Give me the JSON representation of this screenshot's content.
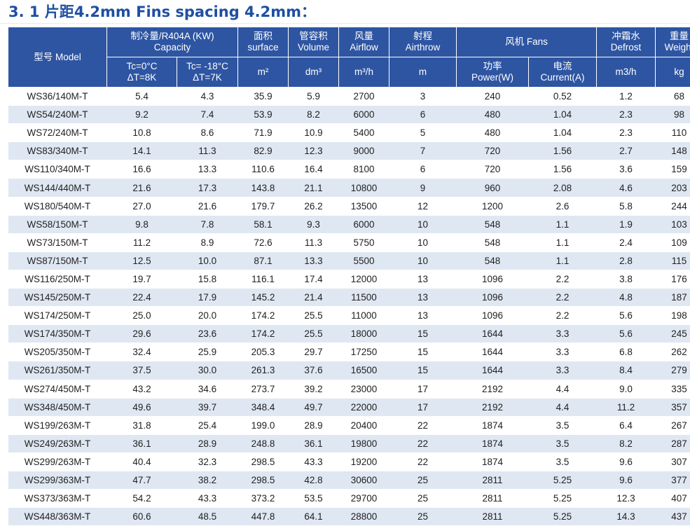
{
  "page": {
    "title": "3. 1 片距4.2mm  Fins spacing 4.2mm："
  },
  "table": {
    "header": {
      "model": "型号 Model",
      "capacity": [
        "制冷量/R404A (KW)",
        "Capacity"
      ],
      "surface": [
        "面积",
        "surface"
      ],
      "volume": [
        "管容积",
        "Volume"
      ],
      "airflow": [
        "风量",
        "Airflow"
      ],
      "airthrow": [
        "射程",
        "Airthrow"
      ],
      "fans": "风机 Fans",
      "defrost": [
        "冲霜水",
        "Defrost"
      ],
      "weight": [
        "重量",
        "Weight"
      ],
      "tc0": [
        "Tc=0°C",
        "ΔT=8K"
      ],
      "tc18": [
        "Tc= -18°C",
        "ΔT=7K"
      ],
      "unit_surface": "m²",
      "unit_volume": "dm³",
      "unit_airflow": "m³/h",
      "unit_airthrow": "m",
      "power": [
        "功率",
        "Power(W)"
      ],
      "current": [
        "电流",
        "Current(A)"
      ],
      "unit_defrost": "m3/h",
      "unit_weight": "kg"
    },
    "rows": [
      [
        "WS36/140M-T",
        "5.4",
        "4.3",
        "35.9",
        "5.9",
        "2700",
        "3",
        "240",
        "0.52",
        "1.2",
        "68"
      ],
      [
        "WS54/240M-T",
        "9.2",
        "7.4",
        "53.9",
        "8.2",
        "6000",
        "6",
        "480",
        "1.04",
        "2.3",
        "98"
      ],
      [
        "WS72/240M-T",
        "10.8",
        "8.6",
        "71.9",
        "10.9",
        "5400",
        "5",
        "480",
        "1.04",
        "2.3",
        "110"
      ],
      [
        "WS83/340M-T",
        "14.1",
        "11.3",
        "82.9",
        "12.3",
        "9000",
        "7",
        "720",
        "1.56",
        "2.7",
        "148"
      ],
      [
        "WS110/340M-T",
        "16.6",
        "13.3",
        "110.6",
        "16.4",
        "8100",
        "6",
        "720",
        "1.56",
        "3.6",
        "159"
      ],
      [
        "WS144/440M-T",
        "21.6",
        "17.3",
        "143.8",
        "21.1",
        "10800",
        "9",
        "960",
        "2.08",
        "4.6",
        "203"
      ],
      [
        "WS180/540M-T",
        "27.0",
        "21.6",
        "179.7",
        "26.2",
        "13500",
        "12",
        "1200",
        "2.6",
        "5.8",
        "244"
      ],
      [
        "WS58/150M-T",
        "9.8",
        "7.8",
        "58.1",
        "9.3",
        "6000",
        "10",
        "548",
        "1.1",
        "1.9",
        "103"
      ],
      [
        "WS73/150M-T",
        "11.2",
        "8.9",
        "72.6",
        "11.3",
        "5750",
        "10",
        "548",
        "1.1",
        "2.4",
        "109"
      ],
      [
        "WS87/150M-T",
        "12.5",
        "10.0",
        "87.1",
        "13.3",
        "5500",
        "10",
        "548",
        "1.1",
        "2.8",
        "115"
      ],
      [
        "WS116/250M-T",
        "19.7",
        "15.8",
        "116.1",
        "17.4",
        "12000",
        "13",
        "1096",
        "2.2",
        "3.8",
        "176"
      ],
      [
        "WS145/250M-T",
        "22.4",
        "17.9",
        "145.2",
        "21.4",
        "11500",
        "13",
        "1096",
        "2.2",
        "4.8",
        "187"
      ],
      [
        "WS174/250M-T",
        "25.0",
        "20.0",
        "174.2",
        "25.5",
        "11000",
        "13",
        "1096",
        "2.2",
        "5.6",
        "198"
      ],
      [
        "WS174/350M-T",
        "29.6",
        "23.6",
        "174.2",
        "25.5",
        "18000",
        "15",
        "1644",
        "3.3",
        "5.6",
        "245"
      ],
      [
        "WS205/350M-T",
        "32.4",
        "25.9",
        "205.3",
        "29.7",
        "17250",
        "15",
        "1644",
        "3.3",
        "6.8",
        "262"
      ],
      [
        "WS261/350M-T",
        "37.5",
        "30.0",
        "261.3",
        "37.6",
        "16500",
        "15",
        "1644",
        "3.3",
        "8.4",
        "279"
      ],
      [
        "WS274/450M-T",
        "43.2",
        "34.6",
        "273.7",
        "39.2",
        "23000",
        "17",
        "2192",
        "4.4",
        "9.0",
        "335"
      ],
      [
        "WS348/450M-T",
        "49.6",
        "39.7",
        "348.4",
        "49.7",
        "22000",
        "17",
        "2192",
        "4.4",
        "11.2",
        "357"
      ],
      [
        "WS199/263M-T",
        "31.8",
        "25.4",
        "199.0",
        "28.9",
        "20400",
        "22",
        "1874",
        "3.5",
        "6.4",
        "267"
      ],
      [
        "WS249/263M-T",
        "36.1",
        "28.9",
        "248.8",
        "36.1",
        "19800",
        "22",
        "1874",
        "3.5",
        "8.2",
        "287"
      ],
      [
        "WS299/263M-T",
        "40.4",
        "32.3",
        "298.5",
        "43.3",
        "19200",
        "22",
        "1874",
        "3.5",
        "9.6",
        "307"
      ],
      [
        "WS299/363M-T",
        "47.7",
        "38.2",
        "298.5",
        "42.8",
        "30600",
        "25",
        "2811",
        "5.25",
        "9.6",
        "377"
      ],
      [
        "WS373/363M-T",
        "54.2",
        "43.3",
        "373.2",
        "53.5",
        "29700",
        "25",
        "2811",
        "5.25",
        "12.3",
        "407"
      ],
      [
        "WS448/363M-T",
        "60.6",
        "48.5",
        "447.8",
        "64.1",
        "28800",
        "25",
        "2811",
        "5.25",
        "14.3",
        "437"
      ]
    ]
  }
}
